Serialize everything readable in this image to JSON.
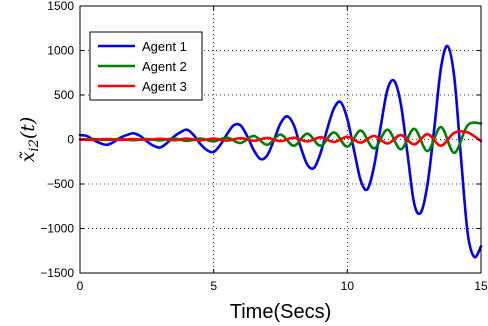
{
  "chart_data": {
    "type": "line",
    "xlabel": "Time(Secs)",
    "ylabel": "x̃",
    "ylabel_subscript": "i2",
    "ylabel_arg": "(t)",
    "xlim": [
      0,
      15
    ],
    "ylim": [
      -1500,
      1500
    ],
    "xticks": [
      0,
      5,
      10,
      15
    ],
    "yticks": [
      -1500,
      -1000,
      -500,
      0,
      500,
      1000,
      1500
    ],
    "grid": true,
    "legend_position": "top-left",
    "series": [
      {
        "name": "Agent 1",
        "color": "#0000ff",
        "x": [
          0,
          0.25,
          0.5,
          0.75,
          1.0,
          1.25,
          1.5,
          1.75,
          2.0,
          2.25,
          2.5,
          2.75,
          3.0,
          3.25,
          3.5,
          3.75,
          4.0,
          4.25,
          4.5,
          4.75,
          5.0,
          5.25,
          5.5,
          5.75,
          6.0,
          6.25,
          6.5,
          6.75,
          7.0,
          7.25,
          7.5,
          7.75,
          8.0,
          8.25,
          8.5,
          8.75,
          9.0,
          9.25,
          9.5,
          9.75,
          10.0,
          10.25,
          10.5,
          10.75,
          11.0,
          11.25,
          11.5,
          11.75,
          12.0,
          12.25,
          12.5,
          12.75,
          13.0,
          13.25,
          13.5,
          13.75,
          14.0,
          14.25,
          14.5,
          14.75,
          15.0
        ],
        "values": [
          50,
          40,
          -5,
          -40,
          -60,
          -30,
          20,
          50,
          70,
          40,
          -20,
          -70,
          -90,
          -40,
          30,
          80,
          110,
          50,
          -50,
          -120,
          -140,
          -60,
          60,
          160,
          160,
          40,
          -120,
          -220,
          -180,
          -10,
          180,
          260,
          160,
          -80,
          -280,
          -320,
          -150,
          120,
          350,
          420,
          230,
          -120,
          -460,
          -560,
          -300,
          150,
          560,
          660,
          400,
          -160,
          -720,
          -820,
          -500,
          120,
          800,
          1050,
          700,
          -200,
          -1050,
          -1320,
          -1200
        ]
      },
      {
        "name": "Agent 2",
        "color": "#008000",
        "x": [
          0,
          0.5,
          1.0,
          1.5,
          2.0,
          2.5,
          3.0,
          3.5,
          4.0,
          4.5,
          5.0,
          5.5,
          6.0,
          6.5,
          7.0,
          7.5,
          8.0,
          8.5,
          9.0,
          9.5,
          10.0,
          10.5,
          11.0,
          11.5,
          12.0,
          12.5,
          13.0,
          13.5,
          14.0,
          14.5,
          15.0
        ],
        "values": [
          0,
          5,
          -5,
          5,
          -8,
          5,
          -10,
          10,
          -15,
          10,
          -20,
          20,
          -40,
          40,
          -60,
          55,
          -70,
          65,
          -70,
          80,
          -80,
          100,
          -100,
          110,
          -110,
          120,
          -130,
          140,
          -150,
          160,
          180
        ]
      },
      {
        "name": "Agent 3",
        "color": "#ff0000",
        "x": [
          0,
          0.5,
          1.0,
          1.5,
          2.0,
          2.5,
          3.0,
          3.5,
          4.0,
          4.5,
          5.0,
          5.5,
          6.0,
          6.5,
          7.0,
          7.5,
          8.0,
          8.5,
          9.0,
          9.5,
          10.0,
          10.5,
          11.0,
          11.5,
          12.0,
          12.5,
          13.0,
          13.5,
          14.0,
          14.5,
          15.0
        ],
        "values": [
          0,
          -5,
          5,
          -5,
          5,
          -5,
          8,
          -8,
          10,
          -10,
          10,
          -12,
          15,
          -15,
          18,
          -18,
          20,
          -22,
          25,
          -28,
          30,
          -35,
          40,
          -45,
          50,
          -55,
          60,
          -70,
          75,
          80,
          -20
        ]
      }
    ]
  }
}
